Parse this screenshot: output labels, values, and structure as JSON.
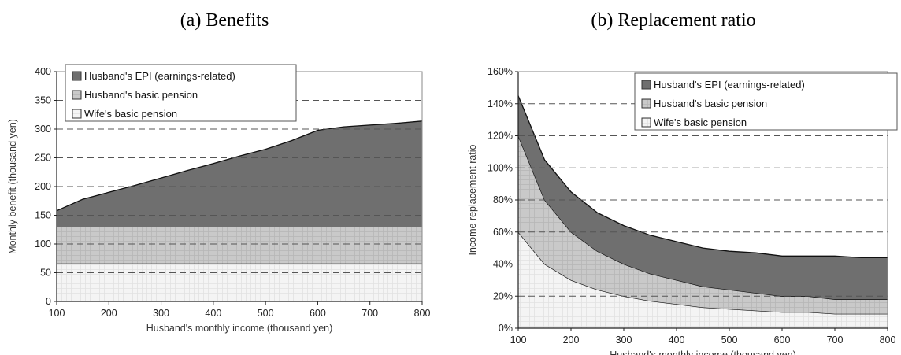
{
  "chart_data": [
    {
      "type": "area",
      "stacked": true,
      "title": "(a) Benefits",
      "xlabel": "Husband's monthly income (thousand yen)",
      "ylabel": "Monthly benefit (thousand yen)",
      "xlim": [
        100,
        800
      ],
      "ylim": [
        0,
        400
      ],
      "xticks": [
        100,
        200,
        300,
        400,
        500,
        600,
        700,
        800
      ],
      "yticks": [
        0,
        50,
        100,
        150,
        200,
        250,
        300,
        350,
        400
      ],
      "x": [
        100,
        150,
        200,
        250,
        300,
        350,
        400,
        450,
        500,
        550,
        600,
        650,
        700,
        750,
        800
      ],
      "series": [
        {
          "name": "Wife's basic pension",
          "values": [
            66,
            66,
            66,
            66,
            66,
            66,
            66,
            66,
            66,
            66,
            66,
            66,
            66,
            66,
            66
          ],
          "color": "#f4f4f4"
        },
        {
          "name": "Husband's basic pension",
          "values": [
            64,
            64,
            64,
            64,
            64,
            64,
            64,
            64,
            64,
            64,
            64,
            64,
            64,
            64,
            64
          ],
          "color": "#c9c9c9"
        },
        {
          "name": "Husband's EPI (earnings-related)",
          "values": [
            28,
            48,
            60,
            72,
            85,
            98,
            110,
            123,
            135,
            150,
            168,
            174,
            177,
            180,
            184
          ],
          "color": "#6f6f6f"
        }
      ],
      "legend_order": [
        "Husband's EPI (earnings-related)",
        "Husband's basic pension",
        "Wife's basic pension"
      ],
      "legend": "top-left",
      "grid": "dashed horizontal"
    },
    {
      "type": "area",
      "stacked": true,
      "title": "(b) Replacement ratio",
      "xlabel": "Husband's monthly income (thousand yen)",
      "ylabel": "Income replacement ratio",
      "xlim": [
        100,
        800
      ],
      "ylim": [
        0,
        160
      ],
      "xticks": [
        100,
        200,
        300,
        400,
        500,
        600,
        700,
        800
      ],
      "yticks": [
        "0%",
        "20%",
        "40%",
        "60%",
        "80%",
        "100%",
        "120%",
        "140%",
        "160%"
      ],
      "ytick_values": [
        0,
        20,
        40,
        60,
        80,
        100,
        120,
        140,
        160
      ],
      "x": [
        100,
        150,
        200,
        250,
        300,
        350,
        400,
        450,
        500,
        550,
        600,
        650,
        700,
        750,
        800
      ],
      "series": [
        {
          "name": "Wife's basic pension",
          "values": [
            60,
            40,
            30,
            24,
            20,
            17,
            15,
            13,
            12,
            11,
            10,
            10,
            9,
            9,
            9
          ],
          "color": "#f4f4f4"
        },
        {
          "name": "Husband's basic pension",
          "values": [
            60,
            40,
            30,
            24,
            20,
            17,
            15,
            13,
            12,
            11,
            10,
            10,
            9,
            9,
            9
          ],
          "color": "#c9c9c9"
        },
        {
          "name": "Husband's EPI (earnings-related)",
          "values": [
            25,
            25,
            25,
            24,
            24,
            24,
            24,
            24,
            24,
            25,
            25,
            25,
            27,
            26,
            26
          ],
          "color": "#6f6f6f"
        }
      ],
      "legend_order": [
        "Husband's EPI (earnings-related)",
        "Husband's basic pension",
        "Wife's basic pension"
      ],
      "legend": "top-right",
      "grid": "dashed horizontal"
    }
  ]
}
